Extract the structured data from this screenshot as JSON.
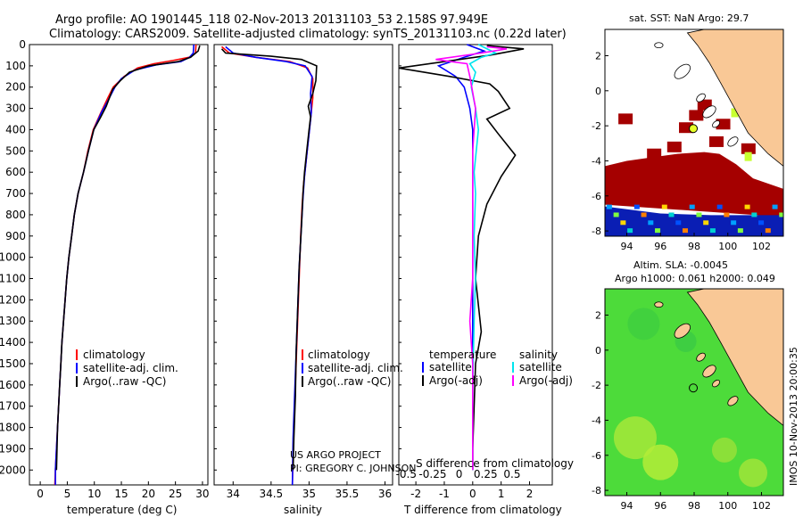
{
  "header": {
    "line1": "Argo profile: AO 1901445_118 02-Nov-2013 20131103_53 2.158S 97.949E",
    "line2": "Climatology: CARS2009. Satellite-adjusted climatology: synTS_20131103.nc (0.22d later)"
  },
  "credits": {
    "project": "US ARGO PROJECT",
    "pi": "PI: GREGORY C. JOHNSON",
    "stamp": "IMOS 10-Nov-2013 20:00:35"
  },
  "colors": {
    "climatology": "#ff0000",
    "satellite": "#0000ff",
    "argo": "#000000",
    "sal_satellite": "#00e5ee",
    "sal_argo": "#ff00ff",
    "land": "#f9c896",
    "sst_hot": "#a50000",
    "sla_green": "#4ddb3a"
  },
  "chart_data": [
    {
      "type": "line",
      "id": "temperature",
      "xlabel": "temperature (deg C)",
      "ylabel": "",
      "xlim": [
        -2,
        31
      ],
      "ylim": [
        2070,
        0
      ],
      "xticks": [
        "0",
        "5",
        "10",
        "15",
        "20",
        "25",
        "30"
      ],
      "xtick_values": [
        0,
        5,
        10,
        15,
        20,
        25,
        30
      ],
      "yticks": [
        "0",
        "100",
        "200",
        "300",
        "400",
        "500",
        "600",
        "700",
        "800",
        "900",
        "1000",
        "1100",
        "1200",
        "1300",
        "1400",
        "1500",
        "1600",
        "1700",
        "1800",
        "1900",
        "2000"
      ],
      "ytick_values": [
        0,
        100,
        200,
        300,
        400,
        500,
        600,
        700,
        800,
        900,
        1000,
        1100,
        1200,
        1300,
        1400,
        1500,
        1600,
        1700,
        1800,
        1900,
        2000
      ],
      "legend": [
        "climatology",
        "satellite-adj. clim.",
        "Argo(..raw -QC)"
      ],
      "series": [
        {
          "name": "climatology",
          "points": [
            [
              28.8,
              0
            ],
            [
              28.7,
              40
            ],
            [
              27.5,
              60
            ],
            [
              24.5,
              75
            ],
            [
              21,
              90
            ],
            [
              18,
              110
            ],
            [
              15.5,
              150
            ],
            [
              13.5,
              200
            ],
            [
              12.5,
              250
            ],
            [
              11.2,
              320
            ],
            [
              9.8,
              400
            ],
            [
              8.8,
              500
            ],
            [
              8,
              600
            ],
            [
              7,
              700
            ],
            [
              6.3,
              800
            ],
            [
              5.8,
              900
            ],
            [
              5.3,
              1000
            ],
            [
              4.9,
              1100
            ],
            [
              4.6,
              1200
            ],
            [
              4.3,
              1300
            ],
            [
              4.0,
              1400
            ],
            [
              3.8,
              1500
            ],
            [
              3.6,
              1600
            ],
            [
              3.4,
              1700
            ],
            [
              3.2,
              1800
            ],
            [
              3.0,
              1900
            ],
            [
              2.8,
              2000
            ],
            [
              2.7,
              2070
            ]
          ]
        },
        {
          "name": "satellite-adj. clim.",
          "points": [
            [
              28.4,
              0
            ],
            [
              28.3,
              40
            ],
            [
              27.6,
              60
            ],
            [
              26,
              80
            ],
            [
              21.5,
              95
            ],
            [
              17.5,
              120
            ],
            [
              15,
              160
            ],
            [
              13.8,
              200
            ],
            [
              12.6,
              260
            ],
            [
              11.3,
              320
            ],
            [
              9.9,
              400
            ],
            [
              8.9,
              500
            ],
            [
              8,
              600
            ],
            [
              7,
              700
            ],
            [
              6.3,
              800
            ],
            [
              5.8,
              900
            ],
            [
              5.3,
              1000
            ],
            [
              4.9,
              1100
            ],
            [
              4.6,
              1200
            ],
            [
              4.3,
              1300
            ],
            [
              4.0,
              1400
            ],
            [
              3.8,
              1500
            ],
            [
              3.6,
              1600
            ],
            [
              3.4,
              1700
            ],
            [
              3.2,
              1800
            ],
            [
              3.0,
              1900
            ],
            [
              2.8,
              2000
            ],
            [
              2.8,
              2070
            ]
          ]
        },
        {
          "name": "Argo(..raw -QC)",
          "points": [
            [
              29.5,
              5
            ],
            [
              29.2,
              30
            ],
            [
              27.8,
              60
            ],
            [
              25.5,
              80
            ],
            [
              20,
              100
            ],
            [
              16.5,
              130
            ],
            [
              14.8,
              170
            ],
            [
              13.4,
              210
            ],
            [
              12.2,
              290
            ],
            [
              11.2,
              340
            ],
            [
              9.9,
              400
            ],
            [
              8.9,
              500
            ],
            [
              8,
              600
            ],
            [
              7,
              700
            ],
            [
              6.3,
              800
            ],
            [
              5.8,
              900
            ],
            [
              5.3,
              1000
            ],
            [
              4.9,
              1100
            ],
            [
              4.6,
              1200
            ],
            [
              4.3,
              1300
            ],
            [
              4.0,
              1400
            ],
            [
              3.8,
              1500
            ],
            [
              3.6,
              1600
            ],
            [
              3.4,
              1700
            ],
            [
              3.2,
              1800
            ],
            [
              3.1,
              1900
            ],
            [
              3.0,
              2000
            ]
          ]
        }
      ]
    },
    {
      "type": "line",
      "id": "salinity",
      "xlabel": "salinity",
      "xlim": [
        33.75,
        36.1
      ],
      "ylim": [
        2070,
        0
      ],
      "xticks": [
        "34",
        "34.5",
        "35",
        "35.5",
        "36"
      ],
      "xtick_values": [
        34,
        34.5,
        35,
        35.5,
        36
      ],
      "legend": [
        "climatology",
        "satellite-adj. clim.",
        "Argo(..raw -QC)"
      ],
      "series": [
        {
          "name": "climatology",
          "points": [
            [
              33.85,
              10
            ],
            [
              33.95,
              40
            ],
            [
              34.3,
              60
            ],
            [
              34.75,
              80
            ],
            [
              34.98,
              110
            ],
            [
              35.05,
              160
            ],
            [
              35.05,
              250
            ],
            [
              35.02,
              350
            ],
            [
              34.99,
              450
            ],
            [
              34.96,
              550
            ],
            [
              34.93,
              650
            ],
            [
              34.91,
              750
            ],
            [
              34.89,
              900
            ],
            [
              34.87,
              1100
            ],
            [
              34.85,
              1300
            ],
            [
              34.83,
              1500
            ],
            [
              34.81,
              1700
            ],
            [
              34.79,
              1900
            ],
            [
              34.78,
              2070
            ]
          ]
        },
        {
          "name": "satellite-adj. clim.",
          "points": [
            [
              33.9,
              10
            ],
            [
              34.0,
              40
            ],
            [
              34.3,
              60
            ],
            [
              34.7,
              80
            ],
            [
              34.95,
              100
            ],
            [
              35.04,
              150
            ],
            [
              35.02,
              230
            ],
            [
              35.03,
              320
            ],
            [
              35.0,
              420
            ],
            [
              34.97,
              520
            ],
            [
              34.94,
              620
            ],
            [
              34.92,
              720
            ],
            [
              34.9,
              850
            ],
            [
              34.87,
              1050
            ],
            [
              34.85,
              1250
            ],
            [
              34.83,
              1450
            ],
            [
              34.81,
              1650
            ],
            [
              34.79,
              1850
            ],
            [
              34.78,
              2070
            ]
          ]
        },
        {
          "name": "Argo(..raw -QC)",
          "points": [
            [
              33.85,
              20
            ],
            [
              33.9,
              40
            ],
            [
              34.5,
              55
            ],
            [
              34.9,
              70
            ],
            [
              35.1,
              100
            ],
            [
              35.09,
              170
            ],
            [
              35.05,
              230
            ],
            [
              34.99,
              290
            ],
            [
              35.02,
              340
            ],
            [
              35.0,
              400
            ],
            [
              34.97,
              500
            ],
            [
              34.94,
              600
            ],
            [
              34.92,
              700
            ],
            [
              34.9,
              850
            ],
            [
              34.87,
              1050
            ],
            [
              34.85,
              1250
            ],
            [
              34.83,
              1450
            ],
            [
              34.82,
              1650
            ],
            [
              34.8,
              1850
            ],
            [
              34.79,
              2000
            ]
          ]
        }
      ]
    },
    {
      "type": "line",
      "id": "difference",
      "xlabel": "T difference from climatology",
      "xlabel2": "S difference from climatology",
      "xlim": [
        -2.6,
        2.8
      ],
      "ylim": [
        2070,
        0
      ],
      "xticks": [
        "-2",
        "-1",
        "0",
        "1",
        "2"
      ],
      "xtick_values": [
        -2,
        -1,
        0,
        1,
        2
      ],
      "xticks2": [
        "-0.5",
        "-0.25",
        "0",
        "0.25",
        "0.5"
      ],
      "xtick2_values": [
        -0.5,
        -0.25,
        0,
        0.25,
        0.5
      ],
      "legend_headers": [
        "temperature",
        "salinity"
      ],
      "legend": [
        "satellite",
        "Argo(-adj)",
        "satellite",
        "Argo(-adj)"
      ],
      "series": [
        {
          "name": "temperature satellite",
          "points": [
            [
              -0.2,
              0
            ],
            [
              0.4,
              30
            ],
            [
              -0.3,
              60
            ],
            [
              -1.2,
              100
            ],
            [
              -0.6,
              150
            ],
            [
              -0.3,
              200
            ],
            [
              -0.1,
              300
            ],
            [
              0.0,
              400
            ],
            [
              0.0,
              600
            ],
            [
              0.0,
              1000
            ],
            [
              0.0,
              1500
            ],
            [
              0.0,
              2000
            ]
          ]
        },
        {
          "name": "temperature Argo(-adj)",
          "points": [
            [
              0.5,
              5
            ],
            [
              1.8,
              20
            ],
            [
              0.6,
              50
            ],
            [
              -2.6,
              110
            ],
            [
              -0.8,
              150
            ],
            [
              0.6,
              185
            ],
            [
              0.9,
              220
            ],
            [
              1.3,
              300
            ],
            [
              0.5,
              350
            ],
            [
              0.9,
              420
            ],
            [
              1.5,
              520
            ],
            [
              1.0,
              620
            ],
            [
              0.5,
              750
            ],
            [
              0.2,
              900
            ],
            [
              0.1,
              1100
            ],
            [
              0.3,
              1350
            ],
            [
              0.1,
              1500
            ],
            [
              0.05,
              1700
            ],
            [
              0,
              1900
            ],
            [
              0,
              2000
            ]
          ]
        },
        {
          "name": "salinity satellite",
          "points": [
            [
              0.2,
              0
            ],
            [
              0.8,
              40
            ],
            [
              0.3,
              60
            ],
            [
              -0.1,
              90
            ],
            [
              0.1,
              130
            ],
            [
              -0.05,
              200
            ],
            [
              0.1,
              300
            ],
            [
              0.2,
              400
            ],
            [
              0.05,
              600
            ],
            [
              0.1,
              700
            ],
            [
              0.05,
              900
            ],
            [
              0.1,
              1100
            ],
            [
              0.05,
              1300
            ],
            [
              0,
              1600
            ],
            [
              0,
              2000
            ]
          ]
        },
        {
          "name": "salinity Argo(-adj)",
          "points": [
            [
              0.5,
              10
            ],
            [
              1.2,
              20
            ],
            [
              0.3,
              40
            ],
            [
              -1.3,
              70
            ],
            [
              -0.2,
              90
            ],
            [
              -0.1,
              150
            ],
            [
              0.1,
              300
            ],
            [
              0.0,
              500
            ],
            [
              0.0,
              800
            ],
            [
              0.0,
              1100
            ],
            [
              -0.1,
              1300
            ],
            [
              0.0,
              1500
            ],
            [
              0.0,
              2000
            ]
          ]
        }
      ]
    },
    {
      "type": "heatmap",
      "id": "sst_map",
      "title": "sat. SST: NaN Argo: 29.7",
      "xlim": [
        92.7,
        103.3
      ],
      "ylim": [
        -8.3,
        3.5
      ],
      "xticks": [
        "94",
        "96",
        "98",
        "100",
        "102"
      ],
      "xtick_values": [
        94,
        96,
        98,
        100,
        102
      ],
      "yticks": [
        "2",
        "0",
        "-2",
        "-4",
        "-6",
        "-8"
      ],
      "ytick_values": [
        2,
        0,
        -2,
        -4,
        -6,
        -8
      ],
      "float_position": [
        97.949,
        -2.158
      ]
    },
    {
      "type": "heatmap",
      "id": "sla_map",
      "title": "Altim. SLA: -0.0045",
      "subtitle": "Argo h1000: 0.061 h2000: 0.049",
      "xlim": [
        92.7,
        103.3
      ],
      "ylim": [
        -8.3,
        3.5
      ],
      "xticks": [
        "94",
        "96",
        "98",
        "100",
        "102"
      ],
      "xtick_values": [
        94,
        96,
        98,
        100,
        102
      ],
      "yticks": [
        "2",
        "0",
        "-2",
        "-4",
        "-6",
        "-8"
      ],
      "ytick_values": [
        2,
        0,
        -2,
        -4,
        -6,
        -8
      ],
      "float_position": [
        97.949,
        -2.158
      ]
    }
  ]
}
